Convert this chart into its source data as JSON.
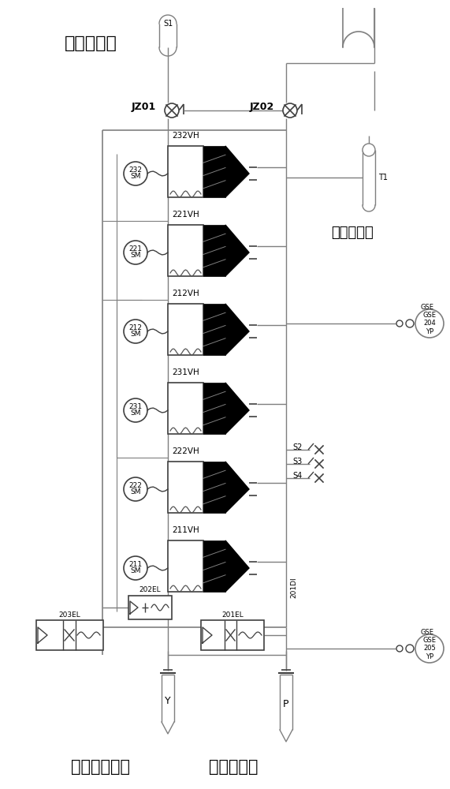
{
  "line_color": "#7f7f7f",
  "dark_line": "#404040",
  "valve_labels": [
    "232VH",
    "221VH",
    "212VH",
    "231VH",
    "222VH",
    "211VH"
  ],
  "sm_labels": [
    "232\nSM",
    "221\nSM",
    "212\nSM",
    "231\nSM",
    "222\nSM",
    "211\nSM"
  ],
  "jz01_label": "JZ01",
  "jz02_label": "JZ02",
  "top_label": "去各油动机",
  "right_top_label": "卸载阀排油",
  "bottom_left_label": "电磁场阀排油",
  "bottom_right_label": "压力油供油",
  "s_labels": [
    "S2",
    "S3",
    "S4"
  ],
  "gse204_label": "GSE\n204\nYP",
  "gse205_label": "GSE\n205\nYP",
  "s1_label": "S1",
  "t1_label": "T1",
  "y_label": "Y",
  "p_label": "P",
  "di201_label": "201DI",
  "el202_label": "202EL",
  "el201_label": "201EL",
  "el203_label": "203EL"
}
